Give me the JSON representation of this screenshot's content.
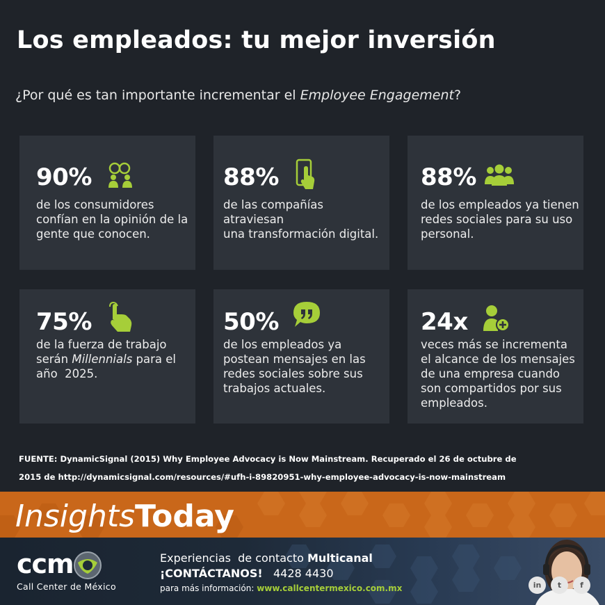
{
  "title": "Los empleados: tu mejor inversión",
  "subtitle": {
    "before": "¿Por qué es tan importante incrementar el ",
    "emphasis": "Employee Engagement",
    "after": "?"
  },
  "colors": {
    "background": "#1f2329",
    "card": "#2e333a",
    "accent": "#a6ce39",
    "banner": "#c9671a"
  },
  "stats": [
    {
      "value": "90%",
      "icon": "people-chat-icon",
      "lines": [
        "de los consumidores",
        "confían en la opinión de la",
        "gente que conocen."
      ]
    },
    {
      "value": "88%",
      "icon": "smartphone-touch-icon",
      "lines": [
        "de las compañías atraviesan",
        "una transformación digital."
      ]
    },
    {
      "value": "88%",
      "icon": "group-icon",
      "lines": [
        "de los empleados ya tienen",
        "redes sociales para su uso",
        "personal."
      ]
    },
    {
      "value": "75%",
      "icon": "pointing-hand-icon",
      "line1_before": "de la fuerza de trabajo",
      "line2_before": "serán ",
      "line2_em": "Millennials",
      "line2_after": " para el",
      "line3": "año  2025."
    },
    {
      "value": "50%",
      "icon": "speech-bubble-quote-icon",
      "lines": [
        "de los empleados ya",
        "postean mensajes en las",
        "redes sociales sobre sus",
        "trabajos actuales."
      ]
    },
    {
      "value": "24x",
      "icon": "add-user-icon",
      "lines": [
        "veces más se incrementa",
        "el alcance de los mensajes",
        "de una empresa cuando",
        "son compartidos por sus",
        "empleados."
      ]
    }
  ],
  "source": {
    "line1": "FUENTE: DynamicSignal (2015) Why Employee Advocacy is Now Mainstream. Recuperado el 26 de octubre de",
    "line2": "2015 de http://dynamicsignal.com/resources/#ufh-i-89820951-why-employee-advocacy-is-now-mainstream"
  },
  "banner": {
    "brand_italic": "Insights",
    "brand_bold": "Today"
  },
  "footer": {
    "logo": "ccm",
    "logo_sub": "Call Center de México",
    "line1_text": "Experiencias  de contacto ",
    "line1_bold": "Multicanal",
    "contact_label": "¡CONTÁCTANOS!",
    "phone": "4428 4430",
    "info_label": "para más información: ",
    "url": "www.callcentermexico.com.mx",
    "social": [
      "in",
      "t",
      "f"
    ]
  }
}
